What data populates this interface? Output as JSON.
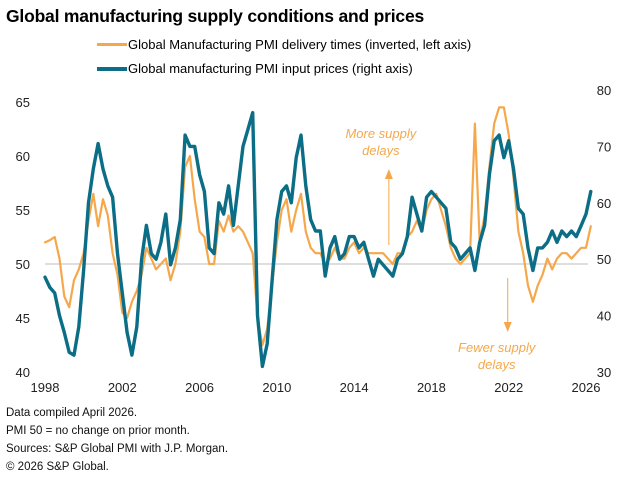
{
  "colors": {
    "delivery": "#F5A84B",
    "prices": "#0B6E86",
    "baseline": "#BDBDBD"
  },
  "footnotes": [
    "Data compiled April 2026.",
    "PMI 50 = no change on prior month.",
    "Sources: S&P Global PMI with J.P. Morgan.",
    "© 2026 S&P Global."
  ],
  "chart_data": {
    "type": "line",
    "title": "Global manufacturing supply conditions and prices",
    "xlabel": "",
    "ylabel_left": "",
    "ylabel_right": "",
    "x_ticks": [
      "1998",
      "2002",
      "2006",
      "2010",
      "2014",
      "2018",
      "2022",
      "2026"
    ],
    "x_range": [
      1998,
      2026.3
    ],
    "y_left": {
      "range": [
        40,
        65
      ],
      "ticks": [
        "40",
        "45",
        "50",
        "55",
        "60",
        "65"
      ]
    },
    "y_right": {
      "range": [
        30,
        80
      ],
      "ticks": [
        "30",
        "40",
        "50",
        "60",
        "70",
        "80"
      ]
    },
    "reference_line": {
      "axis": "left",
      "value": 50
    },
    "grid": false,
    "legend_position": "top-center",
    "annotations": [
      {
        "text_lines": [
          "More supply",
          "delays"
        ],
        "arrow": "up",
        "x": 2015.9
      },
      {
        "text_lines": [
          "Fewer supply",
          "delays"
        ],
        "arrow": "down",
        "x": 2022.0
      }
    ],
    "x": [
      1998.0,
      1998.25,
      1998.5,
      1998.75,
      1999.0,
      1999.25,
      1999.5,
      1999.75,
      2000.0,
      2000.25,
      2000.5,
      2000.75,
      2001.0,
      2001.25,
      2001.5,
      2001.75,
      2002.0,
      2002.25,
      2002.5,
      2002.75,
      2003.0,
      2003.25,
      2003.5,
      2003.75,
      2004.0,
      2004.25,
      2004.5,
      2004.75,
      2005.0,
      2005.25,
      2005.5,
      2005.75,
      2006.0,
      2006.25,
      2006.5,
      2006.75,
      2007.0,
      2007.25,
      2007.5,
      2007.75,
      2008.0,
      2008.25,
      2008.5,
      2008.75,
      2009.0,
      2009.25,
      2009.5,
      2009.75,
      2010.0,
      2010.25,
      2010.5,
      2010.75,
      2011.0,
      2011.25,
      2011.5,
      2011.75,
      2012.0,
      2012.25,
      2012.5,
      2012.75,
      2013.0,
      2013.25,
      2013.5,
      2013.75,
      2014.0,
      2014.25,
      2014.5,
      2014.75,
      2015.0,
      2015.25,
      2015.5,
      2015.75,
      2016.0,
      2016.25,
      2016.5,
      2016.75,
      2017.0,
      2017.25,
      2017.5,
      2017.75,
      2018.0,
      2018.25,
      2018.5,
      2018.75,
      2019.0,
      2019.25,
      2019.5,
      2019.75,
      2020.0,
      2020.25,
      2020.5,
      2020.75,
      2021.0,
      2021.25,
      2021.5,
      2021.75,
      2022.0,
      2022.25,
      2022.5,
      2022.75,
      2023.0,
      2023.25,
      2023.5,
      2023.75,
      2024.0,
      2024.25,
      2024.5,
      2024.75,
      2025.0,
      2025.25,
      2025.5,
      2025.75,
      2026.0,
      2026.25
    ],
    "series": [
      {
        "name": "Global Manufacturing PMI delivery times (inverted, left axis)",
        "axis": "left",
        "values": [
          52,
          52.2,
          52.5,
          50.5,
          47,
          46,
          48.5,
          49.5,
          51,
          54,
          56.5,
          53.5,
          56,
          54.5,
          51,
          49,
          45.5,
          45,
          46.5,
          47.5,
          49,
          51.5,
          50.5,
          49.5,
          50,
          50.5,
          48.5,
          50,
          53,
          59,
          60,
          56,
          53,
          52.5,
          50,
          50,
          54,
          53,
          54.5,
          53,
          53.5,
          53,
          52,
          51,
          45,
          42.5,
          44,
          48,
          52,
          55,
          56,
          53,
          55,
          56.5,
          53,
          51.5,
          51,
          51,
          50,
          50.5,
          51.5,
          50.5,
          50.5,
          51.5,
          52,
          51,
          51.5,
          51,
          51,
          51,
          51,
          50.5,
          50,
          51,
          51,
          52.5,
          53,
          54,
          53,
          55,
          56,
          56.5,
          55,
          53.5,
          51.5,
          50.5,
          50,
          50.5,
          51,
          63,
          52,
          54.5,
          59,
          63,
          64.5,
          64.5,
          62,
          58,
          53,
          51,
          48,
          46.5,
          48,
          49,
          50.5,
          49.5,
          50.5,
          51,
          51,
          50.5,
          51,
          51.5,
          51.5,
          53.5
        ]
      },
      {
        "name": "Global manufacturing PMI input prices (right axis)",
        "axis": "right",
        "values": [
          46.8,
          45,
          44,
          40,
          37,
          33.5,
          33,
          38,
          48,
          60,
          66,
          70.5,
          66,
          63,
          61,
          51,
          44,
          37,
          33,
          38,
          50,
          56,
          51,
          50,
          53,
          58,
          49,
          52,
          57,
          72,
          70,
          70,
          65,
          62,
          52,
          51,
          60,
          58,
          63,
          56,
          63,
          70,
          73,
          76,
          40,
          31,
          35,
          46,
          57,
          62,
          63,
          60,
          68,
          72,
          63,
          57,
          55,
          55,
          47,
          52,
          54,
          50,
          51,
          54,
          54,
          52,
          53,
          50,
          47,
          50,
          49,
          48,
          47,
          50,
          51,
          54,
          61,
          58,
          55,
          61,
          62,
          61,
          60,
          59,
          53,
          52,
          50,
          51,
          52,
          48,
          53,
          56,
          65,
          71,
          72,
          68,
          71,
          66,
          59,
          58,
          52,
          48,
          52,
          52,
          53,
          55,
          53,
          55,
          54,
          55,
          54,
          56,
          58,
          62
        ]
      }
    ]
  }
}
